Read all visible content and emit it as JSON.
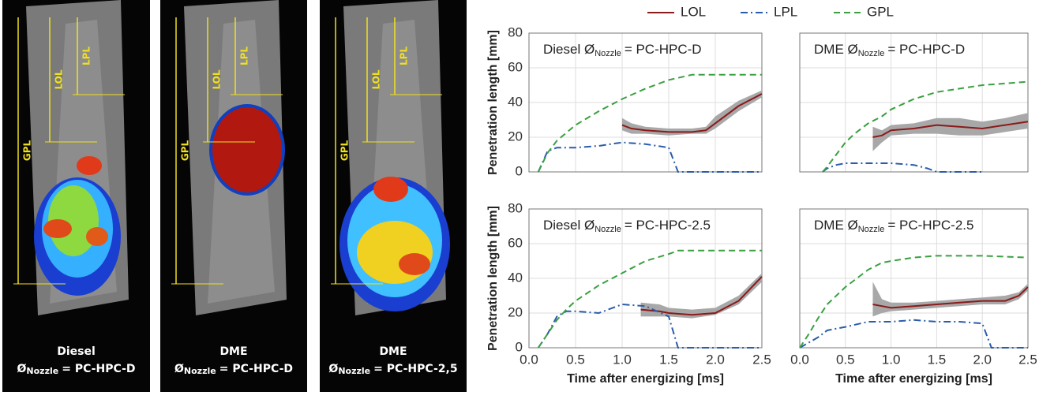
{
  "photos": [
    {
      "labels": [
        "LPL",
        "LOL",
        "GPL"
      ],
      "caption": "Diesel",
      "symbol": "Ø",
      "sub": "Nozzle",
      "rest": "= PC-HPC-D"
    },
    {
      "labels": [
        "LPL",
        "LOL",
        "GPL"
      ],
      "caption": "DME",
      "symbol": "Ø",
      "sub": "Nozzle",
      "rest": "= PC-HPC-D"
    },
    {
      "labels": [
        "LPL",
        "LOL",
        "GPL"
      ],
      "caption": "DME",
      "symbol": "Ø",
      "sub": "Nozzle",
      "rest": "= PC-HPC-2,5"
    }
  ],
  "legend": [
    {
      "name": "LOL",
      "color": "#8b1a1a",
      "dash": "solid"
    },
    {
      "name": "LPL",
      "color": "#2a5caa",
      "dash": "dashdot"
    },
    {
      "name": "GPL",
      "color": "#3aa040",
      "dash": "dashed"
    }
  ],
  "chart_data": [
    {
      "type": "line",
      "title": "Diesel Ø",
      "title_sub": "Nozzle",
      "title_rest": "= PC-HPC-D",
      "ylabel": "Penetration length [mm]",
      "xlim": [
        0,
        2.5
      ],
      "xticks": [
        {
          "value": 0,
          "label": "0.0"
        },
        0.5,
        {
          "value": 1,
          "label": "1.0"
        },
        1.5,
        {
          "value": 2,
          "label": "2.0"
        },
        2.5
      ],
      "ylim": [
        0,
        80
      ],
      "yticks": [
        0,
        20,
        40,
        60,
        80
      ],
      "grid": true,
      "series": [
        {
          "x": [
            1.0,
            1.1,
            1.25,
            1.5,
            1.75,
            1.9,
            2.0,
            2.25,
            2.5
          ],
          "values": [
            27,
            25,
            24,
            23,
            23,
            24,
            28,
            38,
            45
          ],
          "lower": [
            24,
            22,
            22,
            21,
            22,
            22,
            25,
            35,
            43
          ],
          "upper": [
            31,
            28,
            26,
            25,
            25,
            26,
            32,
            41,
            47
          ]
        },
        {
          "x": [
            0.1,
            0.2,
            0.3,
            0.5,
            0.75,
            1.0,
            1.25,
            1.5,
            1.6,
            2.0,
            2.5
          ],
          "values": [
            0,
            12,
            14,
            14,
            15,
            17,
            16,
            14,
            0,
            0,
            0
          ]
        },
        {
          "x": [
            0.1,
            0.2,
            0.3,
            0.5,
            0.75,
            1.0,
            1.25,
            1.5,
            1.75,
            2.0,
            2.25,
            2.5
          ],
          "values": [
            0,
            11,
            18,
            27,
            35,
            42,
            48,
            53,
            56,
            56,
            56,
            56
          ]
        }
      ]
    },
    {
      "type": "line",
      "title": "DME Ø",
      "title_sub": "Nozzle",
      "title_rest": "= PC-HPC-D",
      "xlim": [
        0,
        2.5
      ],
      "xticks": [
        {
          "value": 0,
          "label": "0.0"
        },
        0.5,
        {
          "value": 1,
          "label": "1.0"
        },
        1.5,
        {
          "value": 2,
          "label": "2.0"
        },
        2.5
      ],
      "ylim": [
        0,
        80
      ],
      "yticks": [
        0,
        20,
        40,
        60,
        80
      ],
      "grid": true,
      "series": [
        {
          "x": [
            0.8,
            0.9,
            1.0,
            1.25,
            1.5,
            1.75,
            2.0,
            2.25,
            2.5
          ],
          "values": [
            20,
            21,
            24,
            25,
            27,
            26,
            25,
            27,
            29
          ],
          "lower": [
            12,
            17,
            21,
            22,
            22,
            21,
            21,
            23,
            25
          ],
          "upper": [
            26,
            24,
            27,
            28,
            31,
            31,
            29,
            31,
            34
          ]
        },
        {
          "x": [
            0.25,
            0.3,
            0.4,
            0.5,
            0.75,
            1.0,
            1.25,
            1.4,
            1.5,
            2.0
          ],
          "values": [
            0,
            2,
            4,
            5,
            5,
            5,
            4,
            2,
            0,
            0
          ]
        },
        {
          "x": [
            0.25,
            0.3,
            0.4,
            0.5,
            0.6,
            0.75,
            0.9,
            1.0,
            1.25,
            1.5,
            1.75,
            2.0,
            2.25,
            2.5
          ],
          "values": [
            0,
            3,
            10,
            17,
            22,
            28,
            32,
            36,
            42,
            46,
            48,
            50,
            51,
            52
          ]
        }
      ]
    },
    {
      "type": "line",
      "title": "Diesel Ø",
      "title_sub": "Nozzle",
      "title_rest": "= PC-HPC-2.5",
      "ylabel": "Penetration length [mm]",
      "xlabel": "Time after energizing [ms]",
      "xlim": [
        0,
        2.5
      ],
      "xticks": [
        {
          "value": 0,
          "label": "0.0"
        },
        0.5,
        {
          "value": 1,
          "label": "1.0"
        },
        1.5,
        {
          "value": 2,
          "label": "2.0"
        },
        2.5
      ],
      "ylim": [
        0,
        80
      ],
      "yticks": [
        0,
        20,
        40,
        60,
        80
      ],
      "grid": true,
      "series": [
        {
          "x": [
            1.2,
            1.4,
            1.5,
            1.75,
            2.0,
            2.25,
            2.5
          ],
          "values": [
            22,
            21,
            20,
            19,
            20,
            27,
            41
          ],
          "lower": [
            18,
            18,
            18,
            17,
            19,
            25,
            38
          ],
          "upper": [
            26,
            25,
            23,
            22,
            23,
            30,
            43
          ]
        },
        {
          "x": [
            0.1,
            0.2,
            0.3,
            0.4,
            0.5,
            0.75,
            1.0,
            1.25,
            1.5,
            1.6,
            2.0,
            2.5
          ],
          "values": [
            0,
            8,
            18,
            21,
            21,
            20,
            25,
            24,
            18,
            0,
            0,
            0
          ]
        },
        {
          "x": [
            0.1,
            0.2,
            0.3,
            0.4,
            0.5,
            0.75,
            1.0,
            1.25,
            1.5,
            1.6,
            2.0,
            2.5
          ],
          "values": [
            0,
            8,
            16,
            22,
            27,
            36,
            43,
            50,
            54,
            56,
            56,
            56
          ]
        }
      ]
    },
    {
      "type": "line",
      "title": "DME Ø",
      "title_sub": "Nozzle",
      "title_rest": "= PC-HPC-2.5",
      "xlabel": "Time after energizing [ms]",
      "xlim": [
        0,
        2.5
      ],
      "xticks": [
        {
          "value": 0,
          "label": "0.0"
        },
        0.5,
        {
          "value": 1,
          "label": "1.0"
        },
        1.5,
        {
          "value": 2,
          "label": "2.0"
        },
        2.5
      ],
      "ylim": [
        0,
        80
      ],
      "yticks": [
        0,
        20,
        40,
        60,
        80
      ],
      "grid": true,
      "series": [
        {
          "x": [
            0.8,
            0.9,
            1.0,
            1.25,
            1.5,
            1.75,
            2.0,
            2.25,
            2.4,
            2.5
          ],
          "values": [
            25,
            24,
            23,
            24,
            25,
            26,
            27,
            27,
            30,
            35
          ],
          "lower": [
            18,
            20,
            21,
            22,
            23,
            24,
            25,
            25,
            28,
            33
          ],
          "upper": [
            38,
            28,
            26,
            26,
            27,
            28,
            29,
            30,
            32,
            37
          ]
        },
        {
          "x": [
            0,
            0.2,
            0.3,
            0.5,
            0.75,
            1.0,
            1.25,
            1.5,
            1.75,
            2.0,
            2.1,
            2.5
          ],
          "values": [
            0,
            6,
            10,
            12,
            15,
            15,
            16,
            15,
            15,
            14,
            0,
            0
          ]
        },
        {
          "x": [
            0,
            0.1,
            0.2,
            0.3,
            0.5,
            0.75,
            0.9,
            1.0,
            1.25,
            1.5,
            2.0,
            2.5
          ],
          "values": [
            0,
            8,
            17,
            25,
            35,
            45,
            49,
            50,
            52,
            53,
            53,
            52
          ]
        }
      ]
    }
  ]
}
